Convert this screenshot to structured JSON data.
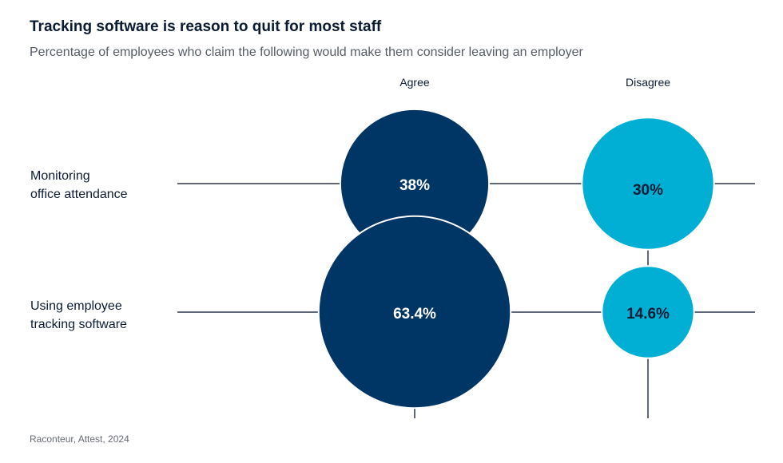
{
  "title": "Tracking software is reason to quit for most staff",
  "subtitle": "Percentage of employees who claim the following would make them consider leaving an employer",
  "source": "Raconteur, Attest, 2024",
  "colors": {
    "agree": "#003665",
    "disagree": "#00afd3",
    "axis": "#2b3548",
    "agree_text": "#ffffff",
    "disagree_text": "#0b1b33"
  },
  "chart_data": {
    "type": "bubble",
    "columns": [
      "Agree",
      "Disagree"
    ],
    "rows": [
      {
        "label_lines": [
          "Monitoring",
          "office attendance"
        ],
        "values": [
          38,
          30
        ],
        "labels": [
          "38%",
          "30%"
        ]
      },
      {
        "label_lines": [
          "Using employee",
          "tracking software"
        ],
        "values": [
          63.4,
          14.6
        ],
        "labels": [
          "63.4%",
          "14.6%"
        ]
      }
    ],
    "unit": "%"
  }
}
